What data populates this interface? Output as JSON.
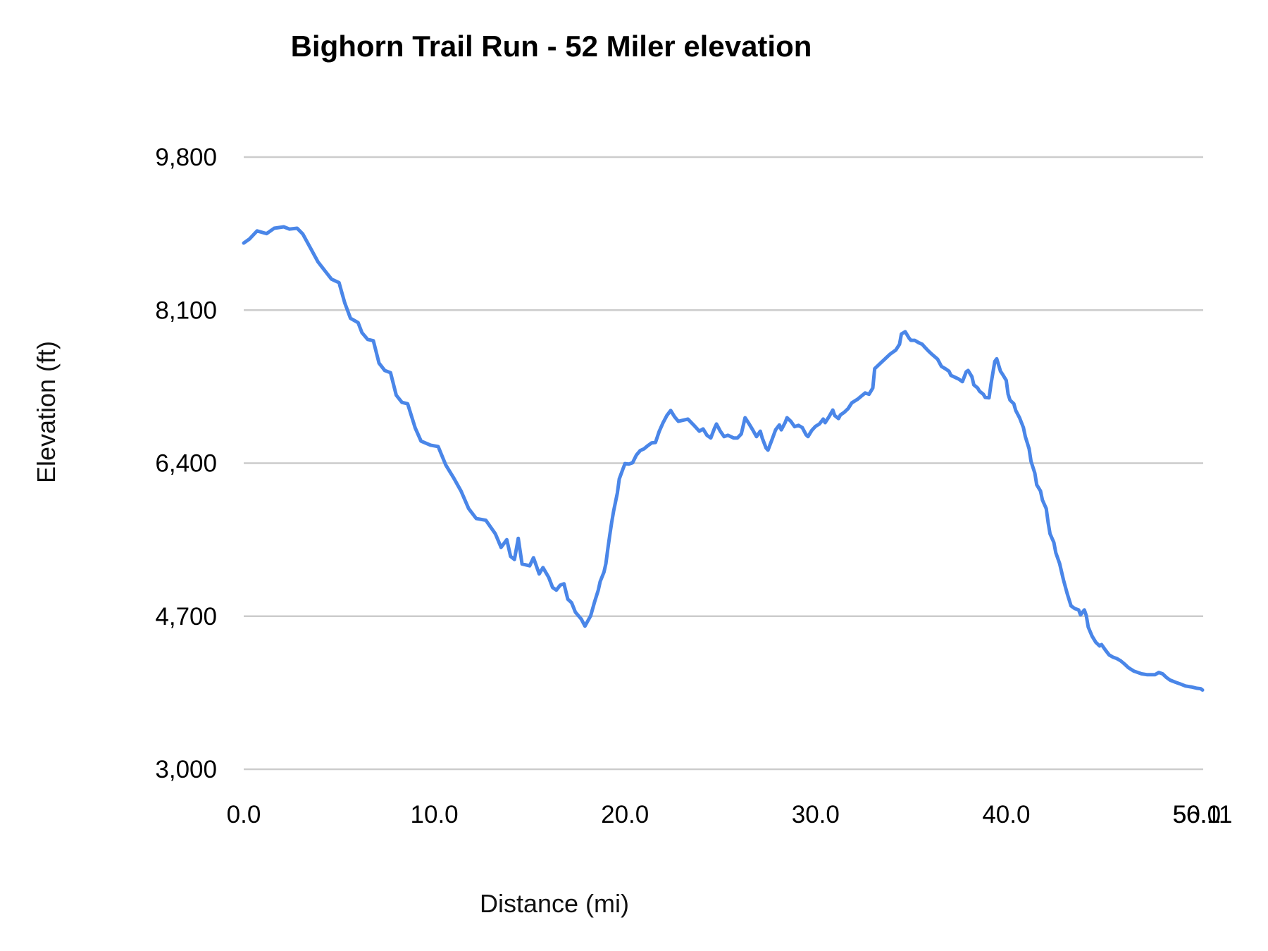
{
  "chart_data": {
    "type": "line",
    "title": "Bighorn Trail Run - 52 Miler elevation",
    "xlabel": "Distance (mi)",
    "ylabel": "Elevation (ft)",
    "grid": "horizontal-only",
    "legend": "none",
    "colors": {
      "line": "#4a86e8",
      "gridline": "#cccccc",
      "text": "#000000"
    },
    "ylim": [
      3000,
      9800
    ],
    "y_ticks": [
      {
        "label": "9,800",
        "ft": 9800
      },
      {
        "label": "8,100",
        "ft": 8100
      },
      {
        "label": "6,400",
        "ft": 6400
      },
      {
        "label": "4,700",
        "ft": 4700
      },
      {
        "label": "3,000",
        "ft": 3000
      }
    ],
    "x_ticks": [
      {
        "label": "0.0",
        "mi": 0
      },
      {
        "label": "10.0",
        "mi": 10
      },
      {
        "label": "20.0",
        "mi": 20
      },
      {
        "label": "30.0",
        "mi": 30
      },
      {
        "label": "40.0",
        "mi": 40
      },
      {
        "label": "50.0",
        "mi": 50
      },
      {
        "label": "56.11",
        "mi": 56.11
      }
    ],
    "series": [
      {
        "name": "elevation",
        "color": "#4a86e8",
        "points": [
          [
            0.0,
            8845
          ],
          [
            0.3,
            8890
          ],
          [
            0.7,
            8980
          ],
          [
            1.2,
            8950
          ],
          [
            1.6,
            9010
          ],
          [
            2.1,
            9025
          ],
          [
            2.4,
            9000
          ],
          [
            2.8,
            9010
          ],
          [
            3.1,
            8945
          ],
          [
            3.5,
            8790
          ],
          [
            3.9,
            8635
          ],
          [
            4.3,
            8525
          ],
          [
            4.6,
            8445
          ],
          [
            5.0,
            8405
          ],
          [
            5.3,
            8180
          ],
          [
            5.6,
            8010
          ],
          [
            6.0,
            7960
          ],
          [
            6.2,
            7850
          ],
          [
            6.5,
            7775
          ],
          [
            6.8,
            7760
          ],
          [
            7.1,
            7510
          ],
          [
            7.4,
            7430
          ],
          [
            7.7,
            7405
          ],
          [
            8.0,
            7155
          ],
          [
            8.3,
            7075
          ],
          [
            8.6,
            7060
          ],
          [
            9.0,
            6790
          ],
          [
            9.3,
            6645
          ],
          [
            9.8,
            6600
          ],
          [
            10.2,
            6585
          ],
          [
            10.6,
            6380
          ],
          [
            11.0,
            6240
          ],
          [
            11.4,
            6090
          ],
          [
            11.8,
            5895
          ],
          [
            12.2,
            5785
          ],
          [
            12.7,
            5765
          ],
          [
            13.2,
            5615
          ],
          [
            13.5,
            5465
          ],
          [
            13.8,
            5550
          ],
          [
            14.0,
            5365
          ],
          [
            14.2,
            5330
          ],
          [
            14.4,
            5565
          ],
          [
            14.6,
            5280
          ],
          [
            15.0,
            5260
          ],
          [
            15.2,
            5350
          ],
          [
            15.5,
            5170
          ],
          [
            15.7,
            5240
          ],
          [
            16.0,
            5130
          ],
          [
            16.2,
            5020
          ],
          [
            16.4,
            4990
          ],
          [
            16.6,
            5045
          ],
          [
            16.8,
            5060
          ],
          [
            17.0,
            4890
          ],
          [
            17.2,
            4850
          ],
          [
            17.4,
            4745
          ],
          [
            17.7,
            4670
          ],
          [
            17.9,
            4590
          ],
          [
            18.2,
            4705
          ],
          [
            18.4,
            4855
          ],
          [
            18.6,
            4990
          ],
          [
            18.7,
            5085
          ],
          [
            18.9,
            5190
          ],
          [
            19.0,
            5285
          ],
          [
            19.1,
            5445
          ],
          [
            19.2,
            5600
          ],
          [
            19.3,
            5740
          ],
          [
            19.4,
            5865
          ],
          [
            19.6,
            6070
          ],
          [
            19.7,
            6225
          ],
          [
            19.9,
            6340
          ],
          [
            20.0,
            6395
          ],
          [
            20.2,
            6390
          ],
          [
            20.4,
            6405
          ],
          [
            20.6,
            6490
          ],
          [
            20.8,
            6540
          ],
          [
            21.0,
            6560
          ],
          [
            21.2,
            6595
          ],
          [
            21.4,
            6625
          ],
          [
            21.6,
            6630
          ],
          [
            21.8,
            6755
          ],
          [
            22.0,
            6850
          ],
          [
            22.2,
            6930
          ],
          [
            22.4,
            6985
          ],
          [
            22.6,
            6915
          ],
          [
            22.8,
            6865
          ],
          [
            23.1,
            6880
          ],
          [
            23.3,
            6890
          ],
          [
            23.6,
            6825
          ],
          [
            23.9,
            6755
          ],
          [
            24.1,
            6780
          ],
          [
            24.3,
            6710
          ],
          [
            24.5,
            6680
          ],
          [
            24.7,
            6790
          ],
          [
            24.8,
            6835
          ],
          [
            25.0,
            6755
          ],
          [
            25.2,
            6695
          ],
          [
            25.4,
            6710
          ],
          [
            25.7,
            6680
          ],
          [
            25.9,
            6680
          ],
          [
            26.1,
            6725
          ],
          [
            26.3,
            6905
          ],
          [
            26.5,
            6840
          ],
          [
            26.7,
            6770
          ],
          [
            26.9,
            6695
          ],
          [
            27.1,
            6755
          ],
          [
            27.2,
            6680
          ],
          [
            27.4,
            6570
          ],
          [
            27.5,
            6545
          ],
          [
            27.7,
            6655
          ],
          [
            27.9,
            6770
          ],
          [
            28.1,
            6825
          ],
          [
            28.2,
            6770
          ],
          [
            28.4,
            6850
          ],
          [
            28.5,
            6905
          ],
          [
            28.7,
            6865
          ],
          [
            28.9,
            6805
          ],
          [
            29.1,
            6820
          ],
          [
            29.3,
            6795
          ],
          [
            29.5,
            6715
          ],
          [
            29.6,
            6695
          ],
          [
            29.8,
            6765
          ],
          [
            30.0,
            6810
          ],
          [
            30.2,
            6835
          ],
          [
            30.4,
            6890
          ],
          [
            30.5,
            6850
          ],
          [
            30.7,
            6915
          ],
          [
            30.9,
            6990
          ],
          [
            31.0,
            6930
          ],
          [
            31.2,
            6895
          ],
          [
            31.3,
            6935
          ],
          [
            31.5,
            6965
          ],
          [
            31.7,
            7005
          ],
          [
            31.9,
            7070
          ],
          [
            32.2,
            7110
          ],
          [
            32.4,
            7145
          ],
          [
            32.6,
            7180
          ],
          [
            32.8,
            7165
          ],
          [
            33.0,
            7235
          ],
          [
            33.1,
            7450
          ],
          [
            33.3,
            7490
          ],
          [
            33.5,
            7530
          ],
          [
            33.7,
            7570
          ],
          [
            33.9,
            7610
          ],
          [
            34.1,
            7640
          ],
          [
            34.2,
            7655
          ],
          [
            34.4,
            7720
          ],
          [
            34.5,
            7835
          ],
          [
            34.7,
            7860
          ],
          [
            34.9,
            7790
          ],
          [
            35.0,
            7765
          ],
          [
            35.2,
            7765
          ],
          [
            35.4,
            7740
          ],
          [
            35.6,
            7720
          ],
          [
            35.7,
            7695
          ],
          [
            35.9,
            7650
          ],
          [
            36.1,
            7610
          ],
          [
            36.4,
            7555
          ],
          [
            36.6,
            7475
          ],
          [
            36.8,
            7450
          ],
          [
            37.0,
            7420
          ],
          [
            37.1,
            7375
          ],
          [
            37.4,
            7345
          ],
          [
            37.5,
            7335
          ],
          [
            37.7,
            7305
          ],
          [
            37.9,
            7415
          ],
          [
            38.0,
            7430
          ],
          [
            38.2,
            7360
          ],
          [
            38.3,
            7270
          ],
          [
            38.5,
            7235
          ],
          [
            38.6,
            7200
          ],
          [
            38.8,
            7165
          ],
          [
            38.9,
            7130
          ],
          [
            39.1,
            7125
          ],
          [
            39.2,
            7280
          ],
          [
            39.4,
            7530
          ],
          [
            39.5,
            7560
          ],
          [
            39.6,
            7490
          ],
          [
            39.7,
            7420
          ],
          [
            39.8,
            7390
          ],
          [
            40.0,
            7320
          ],
          [
            40.1,
            7165
          ],
          [
            40.2,
            7100
          ],
          [
            40.4,
            7060
          ],
          [
            40.5,
            6985
          ],
          [
            40.7,
            6905
          ],
          [
            40.9,
            6795
          ],
          [
            41.0,
            6695
          ],
          [
            41.2,
            6560
          ],
          [
            41.3,
            6420
          ],
          [
            41.5,
            6290
          ],
          [
            41.6,
            6160
          ],
          [
            41.8,
            6090
          ],
          [
            41.9,
            5990
          ],
          [
            42.1,
            5895
          ],
          [
            42.2,
            5740
          ],
          [
            42.3,
            5615
          ],
          [
            42.5,
            5520
          ],
          [
            42.6,
            5405
          ],
          [
            42.8,
            5285
          ],
          [
            43.0,
            5105
          ],
          [
            43.2,
            4950
          ],
          [
            43.4,
            4815
          ],
          [
            43.6,
            4785
          ],
          [
            43.8,
            4770
          ],
          [
            43.9,
            4715
          ],
          [
            44.1,
            4770
          ],
          [
            44.2,
            4705
          ],
          [
            44.3,
            4580
          ],
          [
            44.5,
            4480
          ],
          [
            44.7,
            4410
          ],
          [
            44.9,
            4370
          ],
          [
            45.0,
            4385
          ],
          [
            45.2,
            4325
          ],
          [
            45.4,
            4270
          ],
          [
            45.6,
            4245
          ],
          [
            45.8,
            4230
          ],
          [
            46.0,
            4205
          ],
          [
            46.2,
            4170
          ],
          [
            46.4,
            4130
          ],
          [
            46.7,
            4090
          ],
          [
            47.1,
            4060
          ],
          [
            47.4,
            4050
          ],
          [
            47.8,
            4050
          ],
          [
            48.0,
            4075
          ],
          [
            48.2,
            4060
          ],
          [
            48.4,
            4020
          ],
          [
            48.6,
            3990
          ],
          [
            48.9,
            3965
          ],
          [
            49.1,
            3950
          ],
          [
            49.4,
            3925
          ],
          [
            49.7,
            3915
          ],
          [
            50.0,
            3900
          ],
          [
            50.2,
            3895
          ],
          [
            56.11,
            3880
          ]
        ]
      }
    ]
  }
}
